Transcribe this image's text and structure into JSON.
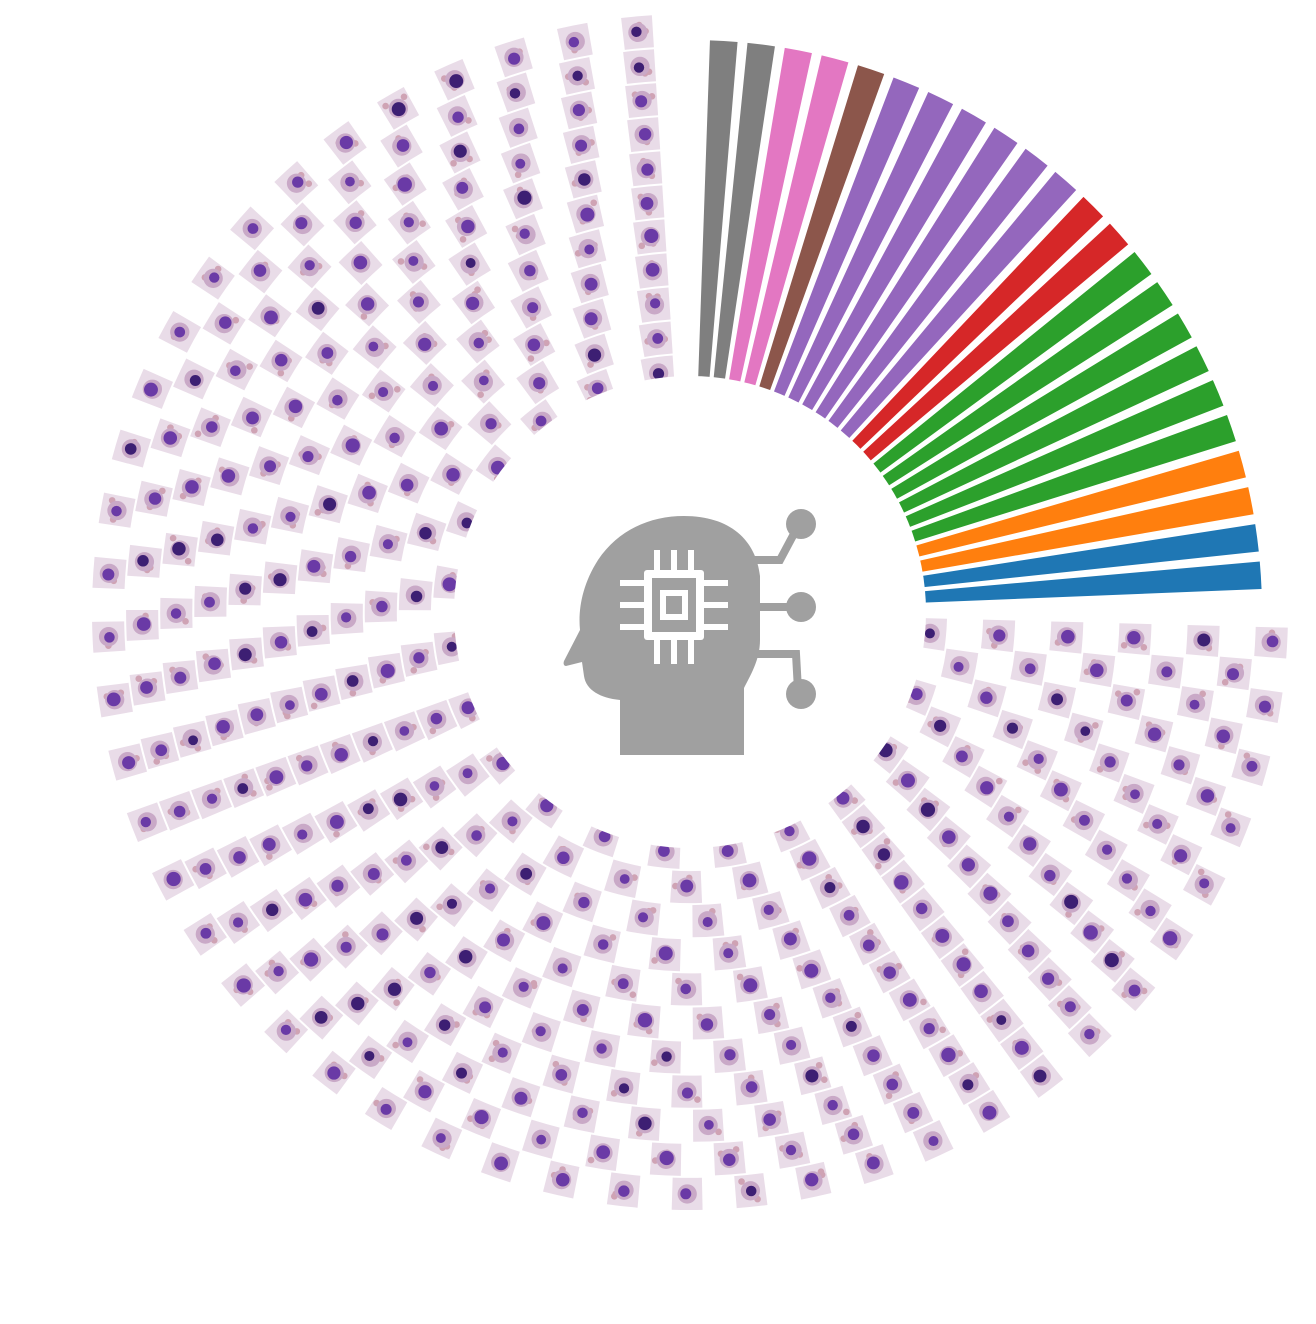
{
  "figure": {
    "background": "#ffffff",
    "center_icon": {
      "name": "ai-head-chip-icon",
      "color": "#a0a0a0"
    },
    "colored_sector": {
      "description_visible": false,
      "bands": [
        {
          "name": "band-gray-1",
          "color": "#7f7f7f"
        },
        {
          "name": "band-gray-2",
          "color": "#7f7f7f"
        },
        {
          "name": "band-pink-1",
          "color": "#e377c2"
        },
        {
          "name": "band-pink-2",
          "color": "#e377c2"
        },
        {
          "name": "band-brown-1",
          "color": "#8c564b"
        },
        {
          "name": "band-purple-1",
          "color": "#9467bd"
        },
        {
          "name": "band-purple-2",
          "color": "#9467bd"
        },
        {
          "name": "band-purple-3",
          "color": "#9467bd"
        },
        {
          "name": "band-purple-4",
          "color": "#9467bd"
        },
        {
          "name": "band-purple-5",
          "color": "#9467bd"
        },
        {
          "name": "band-purple-6",
          "color": "#9467bd"
        },
        {
          "name": "band-red-1",
          "color": "#d62728"
        },
        {
          "name": "band-red-2",
          "color": "#d62728"
        },
        {
          "name": "band-green-1",
          "color": "#2ca02c"
        },
        {
          "name": "band-green-2",
          "color": "#2ca02c"
        },
        {
          "name": "band-green-3",
          "color": "#2ca02c"
        },
        {
          "name": "band-green-4",
          "color": "#2ca02c"
        },
        {
          "name": "band-green-5",
          "color": "#2ca02c"
        },
        {
          "name": "band-green-6",
          "color": "#2ca02c"
        },
        {
          "name": "band-orange-1",
          "color": "#ff7f0e"
        },
        {
          "name": "band-orange-2",
          "color": "#ff7f0e"
        },
        {
          "name": "band-blue-1",
          "color": "#1f77b4"
        },
        {
          "name": "band-blue-2",
          "color": "#1f77b4"
        }
      ]
    },
    "cell_image_ring": {
      "tile_colors": {
        "background": "#e9dce8",
        "cytoplasm": "#c9a9c7",
        "nucleus": "#6a3aa6",
        "nucleus_dark": "#3d1f73",
        "red_cell": "#cfa3b4"
      },
      "rings": 11,
      "tiles_per_ring": 96
    }
  }
}
